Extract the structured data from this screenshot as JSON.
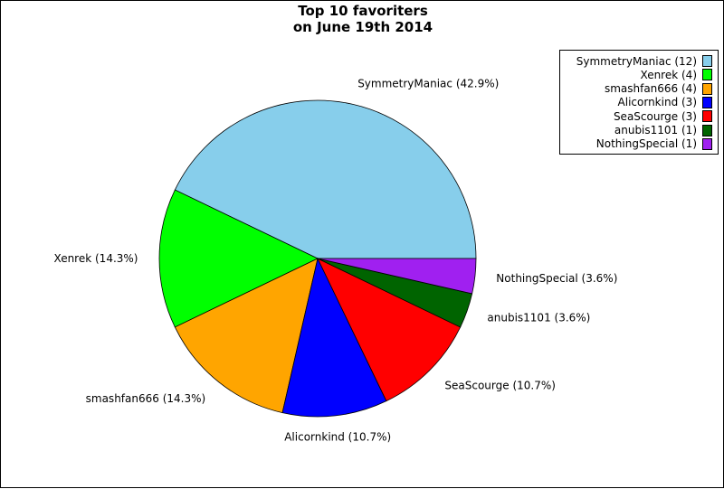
{
  "chart_data": {
    "type": "pie",
    "title_lines": [
      "Top 10 favoriters",
      "on June 19th 2014"
    ],
    "start_angle_deg": 0,
    "direction": "counterclockwise",
    "legend_placement": "top-right",
    "slices": [
      {
        "name": "SymmetryManiac",
        "value": 12,
        "percent": "42.9%",
        "color": "#87ceeb"
      },
      {
        "name": "Xenrek",
        "value": 4,
        "percent": "14.3%",
        "color": "#00ff00"
      },
      {
        "name": "smashfan666",
        "value": 4,
        "percent": "14.3%",
        "color": "#ffa500"
      },
      {
        "name": "Alicornkind",
        "value": 3,
        "percent": "10.7%",
        "color": "#0000ff"
      },
      {
        "name": "SeaScourge",
        "value": 3,
        "percent": "10.7%",
        "color": "#ff0000"
      },
      {
        "name": "anubis1101",
        "value": 1,
        "percent": "3.6%",
        "color": "#006400"
      },
      {
        "name": "NothingSpecial",
        "value": 1,
        "percent": "3.6%",
        "color": "#a020f0"
      }
    ]
  }
}
